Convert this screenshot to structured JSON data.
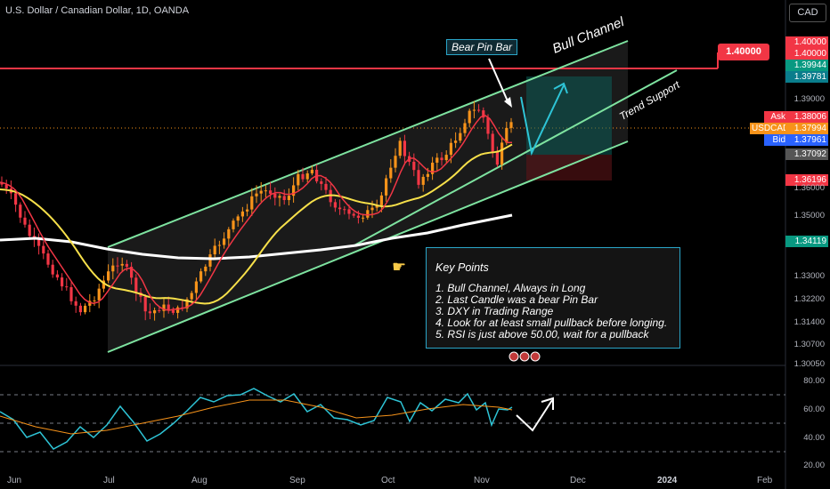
{
  "header": {
    "symbol_title": "U.S. Dollar / Canadian Dollar, 1D, OANDA",
    "currency_button": "CAD"
  },
  "annotations": {
    "bull_channel": "Bull Channel",
    "trend_support": "Trend Support",
    "bear_pin_bar": "Bear Pin Bar",
    "resistance_label": "1.40000",
    "key_points_title": "Key Points",
    "key_points": [
      "1. Bull Channel, Always in Long",
      "2. Last Candle was a bear Pin Bar",
      "3. DXY in Trading Range",
      "4. Look for at least small pullback before longing.",
      "5. RSI is just above 50.00, wait for a pullback"
    ]
  },
  "price_tags": [
    {
      "label": "",
      "value": "1.40000",
      "color": "#f23645"
    },
    {
      "label": "",
      "value": "1.40000",
      "color": "#f23645"
    },
    {
      "label": "",
      "value": "1.39944",
      "color": "#089981"
    },
    {
      "label": "",
      "value": "1.39781",
      "color": "#0a7d8c"
    },
    {
      "label": "Ask",
      "value": "1.38006",
      "color": "#f23645"
    },
    {
      "label": "USDCAD",
      "value": "1.37994",
      "color": "#f7931a"
    },
    {
      "label": "Bid",
      "value": "1.37961",
      "color": "#2962ff"
    },
    {
      "label": "",
      "value": "1.37092",
      "color": "#555555"
    },
    {
      "label": "",
      "value": "1.36196",
      "color": "#f23645"
    },
    {
      "label": "",
      "value": "1.34119",
      "color": "#089981"
    }
  ],
  "price_axis": [
    "1.39000",
    "1.36000",
    "1.35000",
    "1.33000",
    "1.32200",
    "1.31400",
    "1.30700",
    "1.30050"
  ],
  "rsi_axis": [
    "80.00",
    "60.00",
    "40.00",
    "20.00"
  ],
  "time_axis": [
    "Jun",
    "Jul",
    "Aug",
    "Sep",
    "Oct",
    "Nov",
    "Dec",
    "2024",
    "Feb"
  ],
  "colors": {
    "up": "#f7931a",
    "down": "#f23645",
    "channel": "#7ee3a0",
    "ema_fast": "#f23645",
    "ema_mid": "#f7e04a",
    "ema_slow": "#ffffff",
    "rsi": "#2ec4d6",
    "rsi_ma": "#f7931a"
  }
}
